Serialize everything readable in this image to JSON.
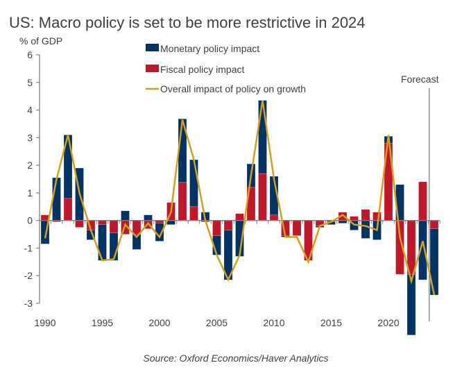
{
  "chart_data": {
    "type": "bar",
    "stacked": true,
    "title": "US: Macro policy is set to be more restrictive in 2024",
    "ylabel": "% of GDP",
    "xlabel": "",
    "ylim": [
      -3,
      6
    ],
    "yticks": [
      6,
      5,
      4,
      3,
      2,
      1,
      0,
      -1,
      -2,
      -3
    ],
    "xtick_labels": [
      "1990",
      "1995",
      "2000",
      "2005",
      "2010",
      "2015",
      "2020"
    ],
    "grid": false,
    "legend_position": "top-center",
    "annotation": "Forecast",
    "forecast_start_year": 2024,
    "source": "Source: Oxford Economics/Haver Analytics",
    "x": [
      1990,
      1991,
      1992,
      1993,
      1994,
      1995,
      1996,
      1997,
      1998,
      1999,
      2000,
      2001,
      2002,
      2003,
      2004,
      2005,
      2006,
      2007,
      2008,
      2009,
      2010,
      2011,
      2012,
      2013,
      2014,
      2015,
      2016,
      2017,
      2018,
      2019,
      2020,
      2021,
      2022,
      2023,
      2024
    ],
    "series": [
      {
        "name": "Monetary policy impact",
        "kind": "bar",
        "color": "#003366",
        "values": [
          -0.85,
          1.55,
          2.3,
          1.9,
          -0.35,
          -1.3,
          -1.0,
          0.35,
          -0.55,
          0.2,
          -0.65,
          -0.15,
          2.3,
          1.7,
          0.3,
          -0.7,
          -1.8,
          -1.3,
          0.85,
          2.65,
          1.4,
          -0.05,
          0,
          0,
          -0.05,
          -0.1,
          -0.1,
          -0.35,
          -0.65,
          -0.7,
          0.25,
          1.3,
          -2.2,
          -2.15,
          -2.4
        ]
      },
      {
        "name": "Fiscal policy impact",
        "kind": "bar",
        "color": "#C0182A",
        "values": [
          0.2,
          -0.05,
          0.8,
          -0.25,
          -0.35,
          -0.15,
          -0.45,
          -0.5,
          -0.5,
          -0.3,
          -0.1,
          0.65,
          1.38,
          0.5,
          -0.05,
          -0.55,
          -0.35,
          0.25,
          1.2,
          1.7,
          0.2,
          -0.55,
          -0.55,
          -1.45,
          -0.2,
          -0.05,
          0.3,
          0.15,
          0.4,
          0.3,
          2.8,
          -1.95,
          -1.95,
          1.4,
          -0.3
        ]
      },
      {
        "name": "Overall impact of policy on growth",
        "kind": "line",
        "color": "#D4A017",
        "values": [
          -0.65,
          1.5,
          3.1,
          1.0,
          -0.35,
          -1.45,
          -1.4,
          -0.15,
          -0.6,
          -0.1,
          -0.6,
          0.3,
          3.65,
          2.2,
          0.0,
          -1.25,
          -2.15,
          -1.25,
          1.65,
          4.35,
          1.5,
          -0.6,
          -0.6,
          -1.5,
          -0.2,
          -0.05,
          0.2,
          -0.15,
          -0.2,
          -0.35,
          3.1,
          -0.6,
          -2.2,
          -0.75,
          -2.7
        ]
      }
    ]
  }
}
